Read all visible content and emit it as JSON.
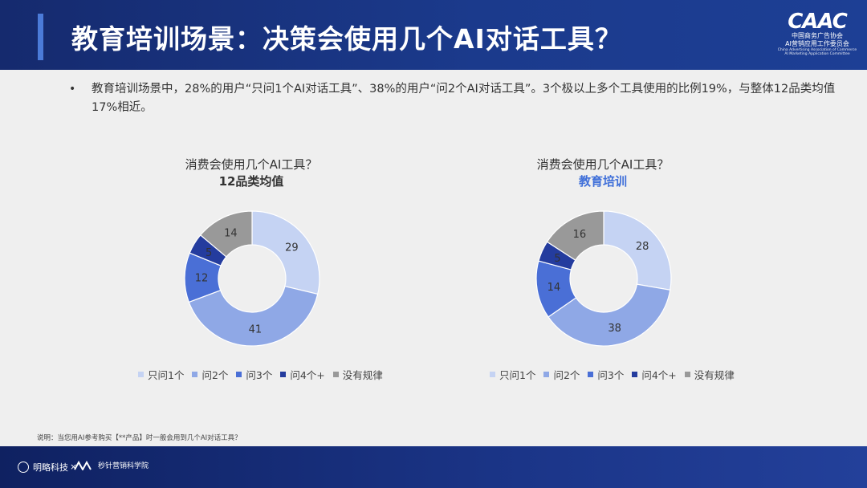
{
  "header": {
    "title": "教育培训场景：决策会使用几个AI对话工具？",
    "logo": {
      "mark": "CAAC",
      "org_line1": "中国商务广告协会",
      "org_line2": "AI营销应用工作委员会",
      "en_line1": "China Advertising Association of Commerce",
      "en_line2": "AI Marketing Application Committee"
    }
  },
  "summary": {
    "bullet": "•",
    "text": "教育培训场景中，28%的用户“只问1个AI对话工具”、38%的用户“问2个AI对话工具”。3个极以上多个工具使用的比例19%，与整体12品类均值17%相近。"
  },
  "colors": [
    "#c5d3f3",
    "#8fa8e6",
    "#4a6fd6",
    "#243c9e",
    "#999999"
  ],
  "legend_labels": [
    "只问1个",
    "问2个",
    "问3个",
    "问4个+",
    "没有规律"
  ],
  "chart_data": [
    {
      "type": "pie",
      "title": "消费会使用几个AI工具？",
      "subtitle": "12品类均值",
      "subtitle_color": "#333333",
      "categories": [
        "只问1个",
        "问2个",
        "问3个",
        "问4个+",
        "没有规律"
      ],
      "values": [
        29,
        41,
        12,
        5,
        14
      ]
    },
    {
      "type": "pie",
      "title": "消费会使用几个AI工具？",
      "subtitle": "教育培训",
      "subtitle_color": "#3f6fd9",
      "categories": [
        "只问1个",
        "问2个",
        "问3个",
        "问4个+",
        "没有规律"
      ],
      "values": [
        28,
        38,
        14,
        5,
        16
      ]
    }
  ],
  "note": "说明：当您用AI参考购买【**产品】时一般会用到几个AI对话工具？",
  "footer": {
    "brand1": "明略科技",
    "separator": "×",
    "brand2": "秒针营销科学院"
  }
}
